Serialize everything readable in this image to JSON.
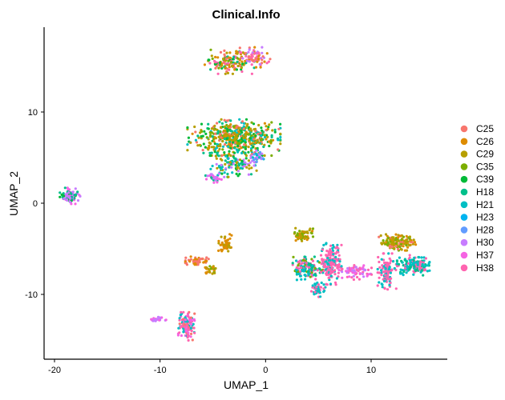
{
  "chart_data": {
    "type": "scatter",
    "title": "Clinical.Info",
    "xlabel": "UMAP_1",
    "ylabel": "UMAP_2",
    "xlim": [
      -21,
      16.5
    ],
    "ylim": [
      -16.5,
      19.5
    ],
    "x_ticks": [
      -20,
      -10,
      0,
      10
    ],
    "y_ticks": [
      -10,
      0,
      10
    ],
    "grid": false,
    "legend_position": "right",
    "series": [
      {
        "name": "C25",
        "color": "#F8766D"
      },
      {
        "name": "C26",
        "color": "#DE8C00"
      },
      {
        "name": "C29",
        "color": "#B79F00"
      },
      {
        "name": "C35",
        "color": "#7CAE00"
      },
      {
        "name": "C39",
        "color": "#00BA38"
      },
      {
        "name": "H18",
        "color": "#00C08B"
      },
      {
        "name": "H21",
        "color": "#00BFC4"
      },
      {
        "name": "H23",
        "color": "#00B4F0"
      },
      {
        "name": "H28",
        "color": "#619CFF"
      },
      {
        "name": "H30",
        "color": "#C77CFF"
      },
      {
        "name": "H37",
        "color": "#F564E3"
      },
      {
        "name": "H38",
        "color": "#FF64B0"
      }
    ],
    "clusters": [
      {
        "cx": -3.5,
        "cy": 15.5,
        "rx": 2.2,
        "ry": 1.2,
        "n": 140,
        "mix": [
          0,
          1,
          2,
          3,
          4,
          5,
          11
        ]
      },
      {
        "cx": -1.0,
        "cy": 16.0,
        "rx": 1.3,
        "ry": 1.0,
        "n": 70,
        "mix": [
          0,
          1,
          11,
          9
        ]
      },
      {
        "cx": -3.0,
        "cy": 7.2,
        "rx": 4.0,
        "ry": 1.8,
        "n": 520,
        "mix": [
          2,
          2,
          2,
          3,
          4,
          4,
          5,
          6,
          1,
          0
        ]
      },
      {
        "cx": -3.0,
        "cy": 4.2,
        "rx": 2.0,
        "ry": 1.2,
        "n": 120,
        "mix": [
          5,
          6,
          4,
          2,
          9
        ]
      },
      {
        "cx": -4.8,
        "cy": 2.8,
        "rx": 0.8,
        "ry": 0.5,
        "n": 30,
        "mix": [
          10,
          9,
          5
        ]
      },
      {
        "cx": -0.7,
        "cy": 5.0,
        "rx": 0.6,
        "ry": 0.8,
        "n": 30,
        "mix": [
          8,
          9,
          6
        ]
      },
      {
        "cx": -18.5,
        "cy": 0.8,
        "rx": 0.9,
        "ry": 0.8,
        "n": 90,
        "mix": [
          9,
          9,
          5,
          4,
          10
        ]
      },
      {
        "cx": -6.5,
        "cy": -6.3,
        "rx": 1.0,
        "ry": 0.4,
        "n": 50,
        "mix": [
          0,
          0,
          1
        ]
      },
      {
        "cx": -3.8,
        "cy": -4.5,
        "rx": 0.6,
        "ry": 1.0,
        "n": 45,
        "mix": [
          1,
          1,
          2
        ]
      },
      {
        "cx": -5.3,
        "cy": -7.3,
        "rx": 0.6,
        "ry": 0.5,
        "n": 25,
        "mix": [
          2,
          3,
          1
        ]
      },
      {
        "cx": -7.5,
        "cy": -13.5,
        "rx": 0.7,
        "ry": 1.4,
        "n": 120,
        "mix": [
          11,
          11,
          0,
          10,
          6
        ]
      },
      {
        "cx": -10.2,
        "cy": -12.8,
        "rx": 0.7,
        "ry": 0.3,
        "n": 20,
        "mix": [
          9,
          10
        ]
      },
      {
        "cx": 3.5,
        "cy": -3.5,
        "rx": 0.9,
        "ry": 0.8,
        "n": 60,
        "mix": [
          2,
          1,
          3
        ]
      },
      {
        "cx": 4.0,
        "cy": -7.2,
        "rx": 1.3,
        "ry": 1.2,
        "n": 150,
        "mix": [
          6,
          6,
          11,
          5,
          3
        ]
      },
      {
        "cx": 6.2,
        "cy": -6.5,
        "rx": 0.9,
        "ry": 2.2,
        "n": 170,
        "mix": [
          11,
          11,
          11,
          6
        ]
      },
      {
        "cx": 5.0,
        "cy": -9.5,
        "rx": 0.6,
        "ry": 0.7,
        "n": 40,
        "mix": [
          6,
          11
        ]
      },
      {
        "cx": 8.5,
        "cy": -7.5,
        "rx": 1.4,
        "ry": 0.8,
        "n": 70,
        "mix": [
          11,
          9,
          10
        ]
      },
      {
        "cx": 11.5,
        "cy": -7.5,
        "rx": 0.8,
        "ry": 1.8,
        "n": 120,
        "mix": [
          11,
          11,
          6
        ]
      },
      {
        "cx": 12.5,
        "cy": -4.3,
        "rx": 1.6,
        "ry": 0.8,
        "n": 140,
        "mix": [
          2,
          2,
          3,
          1,
          0
        ]
      },
      {
        "cx": 14.0,
        "cy": -6.8,
        "rx": 1.4,
        "ry": 1.0,
        "n": 160,
        "mix": [
          6,
          6,
          5,
          11
        ]
      }
    ]
  }
}
